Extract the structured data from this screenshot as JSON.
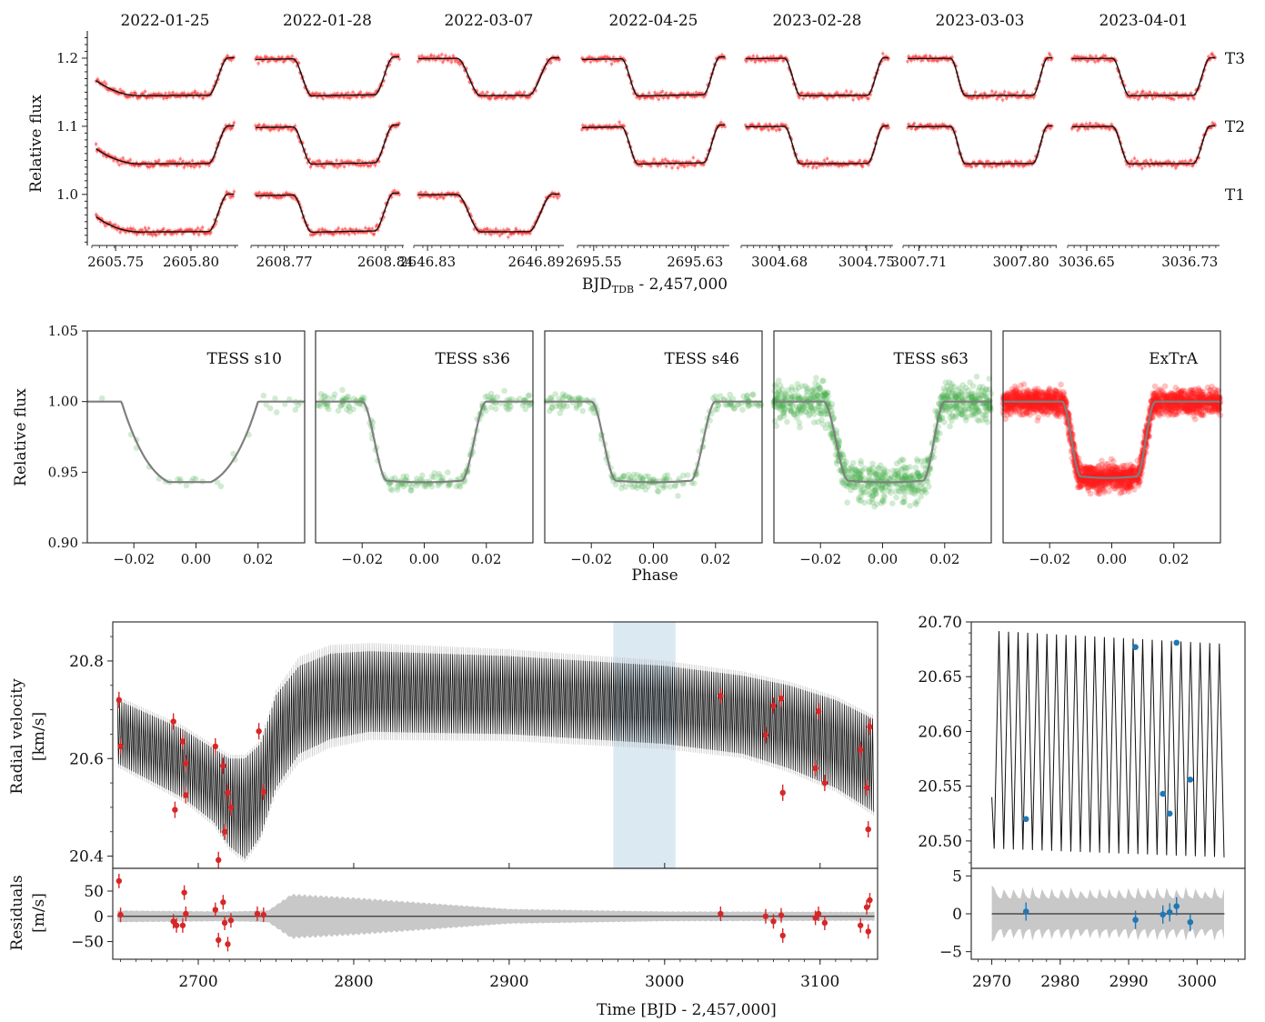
{
  "figure": {
    "top_xlabel": "BJD",
    "top_xlabel_sub": "TDB",
    "top_xlabel_rest": " - 2,457,000",
    "top_ylabel": "Relative flux",
    "middle_xlabel": "Phase",
    "middle_ylabel": "Relative flux",
    "rv_ylabel_line1": "Radial velocity",
    "rv_ylabel_line2": "[km/s]",
    "res_ylabel_line1": "Residuals",
    "res_ylabel_line2": "[m/s]",
    "bottom_xlabel": "Time [BJD - 2,457,000]"
  },
  "chart_data": [
    {
      "type": "scatter",
      "panel": "ground-based transit light curves",
      "xlabel": "BJD_TDB - 2,457,000",
      "ylabel": "Relative flux",
      "ylim": [
        0.925,
        1.24
      ],
      "yticks": [
        1.0,
        1.1,
        1.2
      ],
      "telescopes": [
        {
          "name": "T3",
          "offset": 1.2
        },
        {
          "name": "T2",
          "offset": 1.1
        },
        {
          "name": "T1",
          "offset": 1.0
        }
      ],
      "transit_depth": 0.055,
      "nights": [
        {
          "date": "2022-01-25",
          "xticks": [
            2605.75,
            2605.8
          ],
          "xlim": [
            2605.7342,
            2605.8314
          ],
          "t_start": 2605.737,
          "t_ingress": 2605.7645,
          "t_egress_end": 2605.8286,
          "telescopes": [
            "T1",
            "T2",
            "T3"
          ]
        },
        {
          "date": "2022-01-28",
          "xticks": [
            2608.77,
            2608.84
          ],
          "xlim": [
            2608.7469,
            2608.8527
          ],
          "t_start": 2608.75,
          "t_ingress": 2608.776,
          "t_egress_end": 2608.8496,
          "telescopes": [
            "T1",
            "T2",
            "T3"
          ]
        },
        {
          "date": "2022-03-07",
          "xticks": [
            2646.83,
            2646.89
          ],
          "xlim": [
            2646.8224,
            2646.9053
          ],
          "t_start": 2646.8248,
          "t_ingress": 2646.8463,
          "t_egress_end": 2646.9029,
          "telescopes": [
            "T1",
            "T3"
          ]
        },
        {
          "date": "2022-04-25",
          "xticks": [
            2695.55,
            2695.63
          ],
          "xlim": [
            2695.5372,
            2695.6571
          ],
          "t_start": 2695.5407,
          "t_ingress": 2695.572,
          "t_egress_end": 2695.6536,
          "telescopes": [
            "T2",
            "T3"
          ]
        },
        {
          "date": "2023-02-28",
          "xticks": [
            3004.68,
            3004.75
          ],
          "xlim": [
            3004.6492,
            3004.7713
          ],
          "t_start": 3004.6527,
          "t_ingress": 3004.684,
          "t_egress_end": 3004.7678,
          "telescopes": [
            "T2",
            "T3"
          ]
        },
        {
          "date": "2023-03-03",
          "xticks": [
            3007.71,
            3007.8
          ],
          "xlim": [
            3007.696,
            3007.8316
          ],
          "t_start": 3007.7,
          "t_ingress": 3007.738,
          "t_egress_end": 3007.8276,
          "telescopes": [
            "T2",
            "T3"
          ]
        },
        {
          "date": "2023-04-01",
          "xticks": [
            3036.65,
            3036.73
          ],
          "xlim": [
            3036.6352,
            3036.7531
          ],
          "t_start": 3036.6385,
          "t_ingress": 3036.67,
          "t_egress_end": 3036.7498,
          "telescopes": [
            "T2",
            "T3"
          ]
        }
      ]
    },
    {
      "type": "scatter",
      "panel": "phase-folded transits",
      "xlabel": "Phase",
      "ylabel": "Relative flux",
      "xlim": [
        -0.035,
        0.035
      ],
      "ylim": [
        0.9,
        1.05
      ],
      "xticks": [
        -0.02,
        0.0,
        0.02
      ],
      "yticks": [
        0.9,
        0.95,
        1.0,
        1.05
      ],
      "series": [
        {
          "name": "TESS s10",
          "ingress": -0.024,
          "flat_start": -0.005,
          "flat_end": 0.004,
          "egress": 0.02,
          "depth": 0.057,
          "curved": true,
          "n_points": 32,
          "scatter": 0.006
        },
        {
          "name": "TESS s36",
          "ingress": -0.02,
          "flat_start": -0.012,
          "flat_end": 0.012,
          "egress": 0.02,
          "depth": 0.056,
          "curved": false,
          "n_points": 210,
          "scatter": 0.0045
        },
        {
          "name": "TESS s46",
          "ingress": -0.02,
          "flat_start": -0.012,
          "flat_end": 0.012,
          "egress": 0.02,
          "depth": 0.056,
          "curved": false,
          "n_points": 210,
          "scatter": 0.0045
        },
        {
          "name": "TESS s63",
          "ingress": -0.019,
          "flat_start": -0.011,
          "flat_end": 0.013,
          "egress": 0.02,
          "depth": 0.056,
          "curved": false,
          "n_points": 900,
          "scatter": 0.0095
        },
        {
          "name": "ExTrA",
          "ingress": -0.016,
          "flat_start": -0.01,
          "flat_end": 0.008,
          "egress": 0.014,
          "depth": 0.053,
          "curved": false,
          "n_points": 2200,
          "scatter": 0.006
        }
      ]
    },
    {
      "type": "line",
      "panel": "radial velocity",
      "xlabel": "Time [BJD - 2,457,000]",
      "ylabel": "Radial velocity [km/s]",
      "xlim": [
        2645,
        3137
      ],
      "ylim": [
        20.375,
        20.88
      ],
      "xticks": [
        2700,
        2800,
        2900,
        3000,
        3100
      ],
      "yticks": [
        20.4,
        20.6,
        20.8
      ],
      "shaded_band": [
        2967,
        3007
      ],
      "model_period_days": 1.4,
      "model_envelope": [
        {
          "x": 2648,
          "lo": 20.59,
          "hi": 20.72
        },
        {
          "x": 2690,
          "lo": 20.52,
          "hi": 20.66
        },
        {
          "x": 2710,
          "lo": 20.47,
          "hi": 20.62
        },
        {
          "x": 2720,
          "lo": 20.42,
          "hi": 20.6
        },
        {
          "x": 2730,
          "lo": 20.395,
          "hi": 20.6
        },
        {
          "x": 2740,
          "lo": 20.44,
          "hi": 20.63
        },
        {
          "x": 2750,
          "lo": 20.54,
          "hi": 20.73
        },
        {
          "x": 2765,
          "lo": 20.61,
          "hi": 20.79
        },
        {
          "x": 2785,
          "lo": 20.64,
          "hi": 20.815
        },
        {
          "x": 2810,
          "lo": 20.655,
          "hi": 20.82
        },
        {
          "x": 2900,
          "lo": 20.65,
          "hi": 20.81
        },
        {
          "x": 3000,
          "lo": 20.63,
          "hi": 20.79
        },
        {
          "x": 3050,
          "lo": 20.61,
          "hi": 20.77
        },
        {
          "x": 3080,
          "lo": 20.58,
          "hi": 20.75
        },
        {
          "x": 3110,
          "lo": 20.54,
          "hi": 20.72
        },
        {
          "x": 3135,
          "lo": 20.49,
          "hi": 20.68
        }
      ],
      "observations": [
        {
          "x": 2649,
          "y": 20.72
        },
        {
          "x": 2650,
          "y": 20.625
        },
        {
          "x": 2684,
          "y": 20.676
        },
        {
          "x": 2685,
          "y": 20.495
        },
        {
          "x": 2690,
          "y": 20.635
        },
        {
          "x": 2692,
          "y": 20.59
        },
        {
          "x": 2692,
          "y": 20.525
        },
        {
          "x": 2711,
          "y": 20.625
        },
        {
          "x": 2713,
          "y": 20.392
        },
        {
          "x": 2716,
          "y": 20.585
        },
        {
          "x": 2717,
          "y": 20.45
        },
        {
          "x": 2719,
          "y": 20.53
        },
        {
          "x": 2721,
          "y": 20.5
        },
        {
          "x": 2739,
          "y": 20.656
        },
        {
          "x": 2742,
          "y": 20.532
        },
        {
          "x": 3036,
          "y": 20.728
        },
        {
          "x": 3065,
          "y": 20.648
        },
        {
          "x": 3070,
          "y": 20.708
        },
        {
          "x": 3075,
          "y": 20.723
        },
        {
          "x": 3076,
          "y": 20.53
        },
        {
          "x": 3097,
          "y": 20.58
        },
        {
          "x": 3099,
          "y": 20.697
        },
        {
          "x": 3103,
          "y": 20.55
        },
        {
          "x": 3126,
          "y": 20.618
        },
        {
          "x": 3130,
          "y": 20.54
        },
        {
          "x": 3131,
          "y": 20.455
        },
        {
          "x": 3132,
          "y": 20.665
        }
      ],
      "color": "#d62728"
    },
    {
      "type": "scatter",
      "panel": "radial velocity residuals",
      "xlabel": "Time [BJD - 2,457,000]",
      "ylabel": "Residuals [m/s]",
      "xlim": [
        2645,
        3137
      ],
      "ylim": [
        -85,
        95
      ],
      "yticks": [
        -50,
        0,
        50
      ],
      "band_halfwidth": [
        {
          "x": 2648,
          "y": 12
        },
        {
          "x": 2720,
          "y": 10
        },
        {
          "x": 2745,
          "y": 12
        },
        {
          "x": 2760,
          "y": 45
        },
        {
          "x": 2800,
          "y": 38
        },
        {
          "x": 2900,
          "y": 15
        },
        {
          "x": 3000,
          "y": 10
        },
        {
          "x": 3137,
          "y": 9
        }
      ],
      "values": [
        {
          "x": 2649,
          "y": 70
        },
        {
          "x": 2650,
          "y": 3
        },
        {
          "x": 2684,
          "y": -10
        },
        {
          "x": 2686,
          "y": -18
        },
        {
          "x": 2690,
          "y": -18
        },
        {
          "x": 2691,
          "y": 47
        },
        {
          "x": 2692,
          "y": 5
        },
        {
          "x": 2711,
          "y": 13
        },
        {
          "x": 2713,
          "y": -47
        },
        {
          "x": 2716,
          "y": 28
        },
        {
          "x": 2717,
          "y": -13
        },
        {
          "x": 2719,
          "y": -55
        },
        {
          "x": 2721,
          "y": -8
        },
        {
          "x": 2738,
          "y": 5
        },
        {
          "x": 2742,
          "y": 3
        },
        {
          "x": 3036,
          "y": 5
        },
        {
          "x": 3065,
          "y": 0
        },
        {
          "x": 3070,
          "y": -10
        },
        {
          "x": 3075,
          "y": 2
        },
        {
          "x": 3076,
          "y": -38
        },
        {
          "x": 3097,
          "y": -3
        },
        {
          "x": 3099,
          "y": 5
        },
        {
          "x": 3103,
          "y": -13
        },
        {
          "x": 3126,
          "y": -18
        },
        {
          "x": 3130,
          "y": 18
        },
        {
          "x": 3131,
          "y": -30
        },
        {
          "x": 3132,
          "y": 32
        }
      ]
    },
    {
      "type": "line",
      "panel": "radial velocity zoom",
      "xlim": [
        2967,
        3007
      ],
      "ylim": [
        20.475,
        20.7
      ],
      "xticks": [
        2970,
        2980,
        2990,
        3000
      ],
      "yticks": [
        20.5,
        20.55,
        20.6,
        20.65,
        20.7
      ],
      "model": {
        "x_start": 2970,
        "x_end": 3004,
        "period": 1.4,
        "lo_start": 20.493,
        "lo_end": 20.485,
        "hi_start": 20.692,
        "hi_end": 20.68
      },
      "observations": [
        {
          "x": 2975,
          "y": 20.52
        },
        {
          "x": 2991,
          "y": 20.677
        },
        {
          "x": 2995,
          "y": 20.543
        },
        {
          "x": 2996,
          "y": 20.525
        },
        {
          "x": 2997,
          "y": 20.681
        },
        {
          "x": 2999,
          "y": 20.556
        }
      ],
      "color": "#1f77b4"
    },
    {
      "type": "scatter",
      "panel": "radial velocity residuals zoom",
      "xlim": [
        2967,
        3007
      ],
      "ylim": [
        -6,
        6
      ],
      "xticks": [
        2970,
        2980,
        2990,
        3000
      ],
      "yticks": [
        -5,
        0,
        5
      ],
      "band_halfwidth_range": [
        2,
        4.8
      ],
      "values": [
        {
          "x": 2975,
          "y": 0.3
        },
        {
          "x": 2991,
          "y": -0.8
        },
        {
          "x": 2995,
          "y": -0.1
        },
        {
          "x": 2996,
          "y": 0.2
        },
        {
          "x": 2997,
          "y": 1.0
        },
        {
          "x": 2999,
          "y": -1.1
        }
      ]
    }
  ]
}
